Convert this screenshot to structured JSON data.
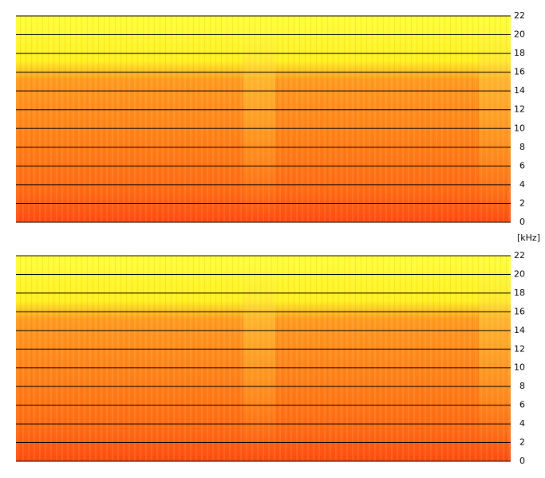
{
  "chart_data": [
    {
      "type": "spectrogram",
      "ylim": [
        0,
        22
      ],
      "yticks": [
        0,
        2,
        4,
        6,
        8,
        10,
        12,
        14,
        16,
        18,
        20,
        22
      ],
      "y_label": "[kHz]"
    },
    {
      "type": "spectrogram",
      "ylim": [
        0,
        22
      ],
      "yticks": [
        0,
        2,
        4,
        6,
        8,
        10,
        12,
        14,
        16,
        18,
        20,
        22
      ]
    }
  ]
}
